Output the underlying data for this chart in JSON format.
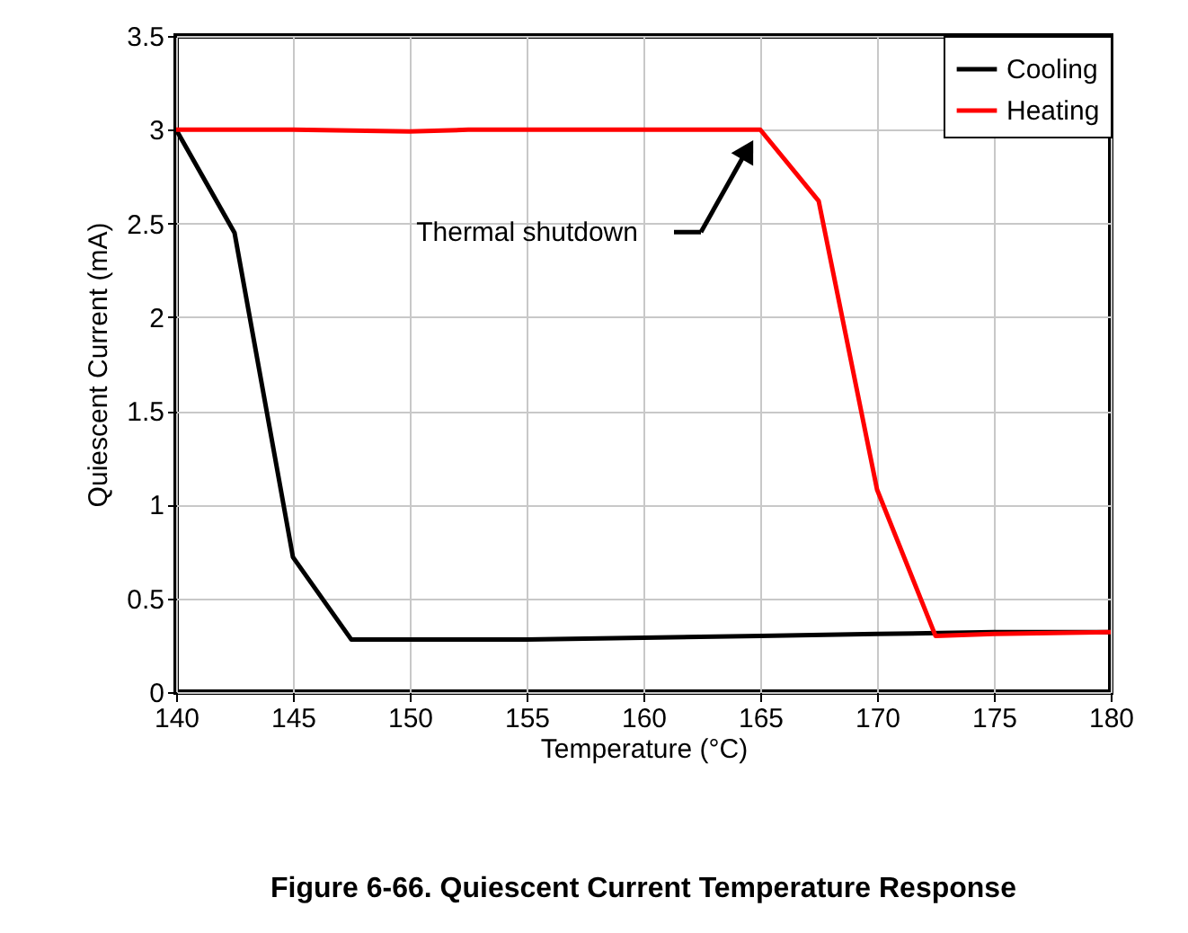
{
  "chart_data": {
    "type": "line",
    "title": "Figure 6-66. Quiescent Current Temperature Response",
    "xlabel": "Temperature (°C)",
    "ylabel": "Quiescent Current (mA)",
    "series": [
      {
        "name": "Cooling",
        "color": "#000000",
        "x": [
          140,
          142.5,
          145,
          147.5,
          150,
          155,
          160,
          165,
          170,
          175,
          180
        ],
        "values": [
          3.0,
          2.45,
          0.72,
          0.28,
          0.28,
          0.28,
          0.29,
          0.3,
          0.31,
          0.32,
          0.32
        ]
      },
      {
        "name": "Heating",
        "color": "#ff0000",
        "x": [
          140,
          145,
          150,
          152.5,
          160,
          165,
          167.5,
          170,
          172.5,
          175,
          180
        ],
        "values": [
          3.0,
          3.0,
          2.99,
          3.0,
          3.0,
          3.0,
          2.62,
          1.08,
          0.3,
          0.31,
          0.32
        ]
      }
    ],
    "xlim": [
      140,
      180
    ],
    "xticks": [
      140,
      145,
      150,
      155,
      160,
      165,
      170,
      175,
      180
    ],
    "ylim": [
      0,
      3.5
    ],
    "yticks": [
      0,
      0.5,
      1,
      1.5,
      2,
      2.5,
      3,
      3.5
    ],
    "grid": true,
    "legend": "top right",
    "marker": "none",
    "line_style": "solid",
    "annotations": [
      "Thermal shutdown"
    ]
  }
}
